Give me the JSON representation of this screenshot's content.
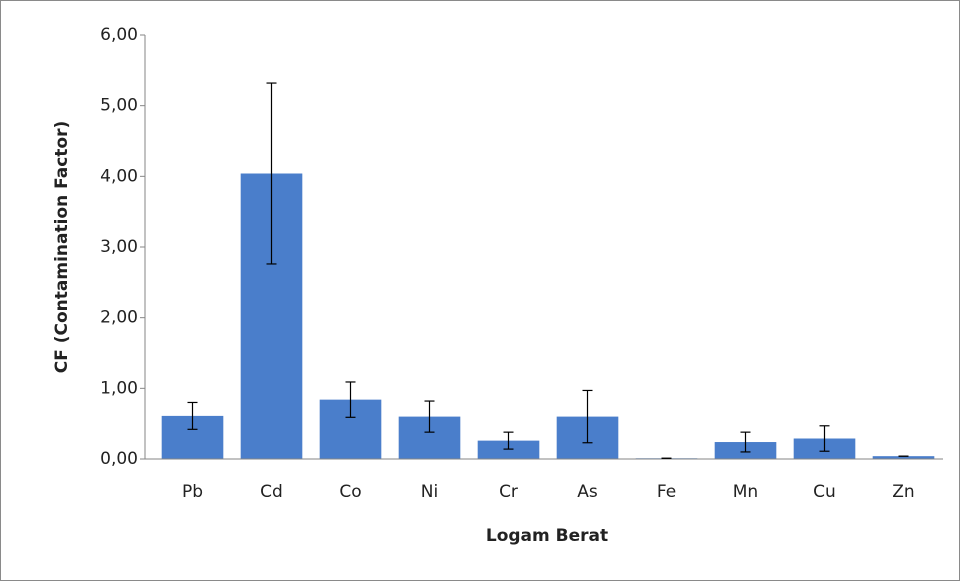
{
  "chart_data": {
    "type": "bar",
    "categories": [
      "Pb",
      "Cd",
      "Co",
      "Ni",
      "Cr",
      "As",
      "Fe",
      "Mn",
      "Cu",
      "Zn"
    ],
    "values": [
      0.61,
      4.04,
      0.84,
      0.6,
      0.26,
      0.6,
      0.01,
      0.24,
      0.29,
      0.04
    ],
    "errors": [
      0.19,
      1.28,
      0.25,
      0.22,
      0.12,
      0.37,
      0,
      0.14,
      0.18,
      0
    ],
    "color": "#4a7ecb",
    "xlabel": "Logam Berat",
    "ylabel": "CF (Contamination Factor)",
    "ylim": [
      0,
      6
    ],
    "yticks": [
      {
        "value": 0,
        "label": "0,00"
      },
      {
        "value": 1,
        "label": "1,00"
      },
      {
        "value": 2,
        "label": "2,00"
      },
      {
        "value": 3,
        "label": "3,00"
      },
      {
        "value": 4,
        "label": "4,00"
      },
      {
        "value": 5,
        "label": "5,00"
      },
      {
        "value": 6,
        "label": "6,00"
      }
    ],
    "grid": false
  }
}
